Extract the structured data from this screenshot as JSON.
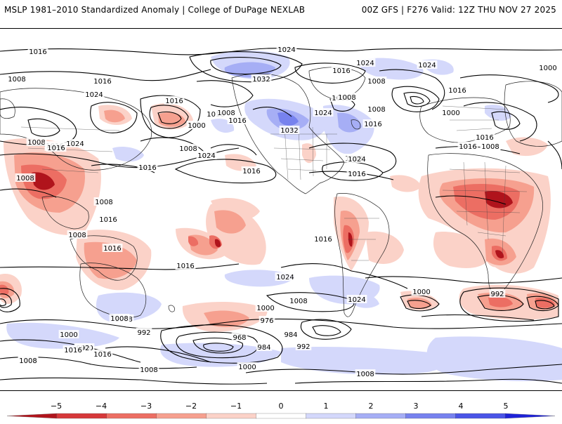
{
  "header": {
    "left_title": "MSLP 1981–2010 Standardized Anomaly | College of DuPage NEXLAB",
    "right_title": "00Z GFS | F276 Valid: 12Z THU NOV 27 2025"
  },
  "colorbar": {
    "ticks": [
      "−5",
      "−4",
      "−3",
      "−2",
      "−1",
      "0",
      "1",
      "2",
      "3",
      "4",
      "5"
    ],
    "colors": [
      "#b0141c",
      "#d6383a",
      "#ec6e63",
      "#f6a08f",
      "#fbd2c8",
      "#ffffff",
      "#d4d8fb",
      "#a6aef5",
      "#7782ee",
      "#4a54e6",
      "#1e22d8"
    ]
  },
  "isobar_labels": [
    "1016",
    "1024",
    "1016",
    "1024",
    "1000",
    "1008",
    "1016",
    "1008",
    "1024",
    "1032",
    "1016",
    "1016",
    "1008",
    "1024",
    "1016",
    "1000",
    "1016",
    "1016",
    "1032",
    "1008",
    "1008",
    "1024",
    "1008",
    "1000",
    "1008",
    "1016",
    "1024",
    "1024",
    "1016",
    "1008",
    "1016",
    "1008",
    "1024",
    "1016",
    "1016",
    "1008",
    "1016",
    "1016",
    "1008",
    "1008",
    "1016",
    "1008",
    "1016",
    "1016",
    "1016",
    "1016",
    "1024",
    "1024",
    "1008",
    "1016",
    "1000",
    "1008",
    "1000",
    "992",
    "1008",
    "1000",
    "992",
    "984",
    "976",
    "968",
    "992",
    "984",
    "1000",
    "992",
    "1008",
    "1016",
    "1008",
    "1016",
    "1008",
    "1000",
    "1008"
  ]
}
